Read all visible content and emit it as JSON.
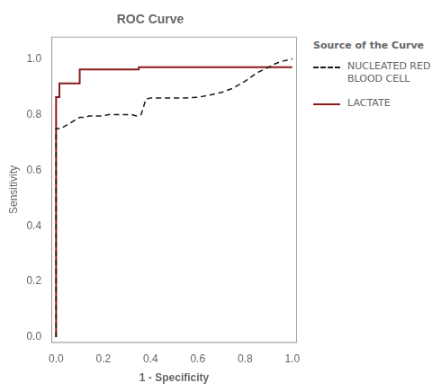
{
  "chart_data": {
    "type": "line",
    "title": "ROC Curve",
    "xlabel": "1 - Specificity",
    "ylabel": "Sensitivity",
    "legend_title": "Source of the Curve",
    "legend": "right",
    "grid": false,
    "xlim": [
      -0.02,
      1.02
    ],
    "ylim": [
      -0.02,
      1.08
    ],
    "xticks": [
      {
        "value": 0.0,
        "label": "0.0"
      },
      0.2,
      0.4,
      0.6,
      0.8,
      {
        "value": 1.0,
        "label": "1.0"
      }
    ],
    "yticks": [
      {
        "value": 0.0,
        "label": "0.0"
      },
      0.2,
      0.4,
      0.6,
      0.8,
      {
        "value": 1.0,
        "label": "1.0"
      }
    ],
    "series": [
      {
        "name": "NUCLEATED RED\nBLOOD CELL",
        "color": "#1a1a1a",
        "line_style": "dashed",
        "x": [
          0.0,
          0.0,
          0.02,
          0.04,
          0.06,
          0.08,
          0.1,
          0.12,
          0.14,
          0.16,
          0.18,
          0.2,
          0.22,
          0.24,
          0.26,
          0.28,
          0.3,
          0.32,
          0.34,
          0.36,
          0.38,
          0.4,
          0.42,
          0.44,
          0.48,
          0.5,
          0.55,
          0.6,
          0.65,
          0.7,
          0.75,
          0.8,
          0.85,
          0.9,
          0.92,
          0.95,
          1.0
        ],
        "values": [
          0.0,
          0.75,
          0.75,
          0.76,
          0.77,
          0.78,
          0.79,
          0.79,
          0.795,
          0.795,
          0.795,
          0.795,
          0.8,
          0.8,
          0.8,
          0.8,
          0.8,
          0.8,
          0.795,
          0.8,
          0.855,
          0.86,
          0.86,
          0.86,
          0.86,
          0.86,
          0.86,
          0.862,
          0.87,
          0.88,
          0.895,
          0.92,
          0.95,
          0.97,
          0.98,
          0.99,
          1.0
        ]
      },
      {
        "name": "LACTATE",
        "color": "#8b1a1a",
        "line_style": "solid",
        "x": [
          0.0,
          0.0,
          0.014,
          0.014,
          0.1,
          0.1,
          0.35,
          0.35,
          1.0
        ],
        "values": [
          0.0,
          0.863,
          0.863,
          0.912,
          0.912,
          0.962,
          0.962,
          0.97,
          0.97
        ]
      }
    ]
  }
}
